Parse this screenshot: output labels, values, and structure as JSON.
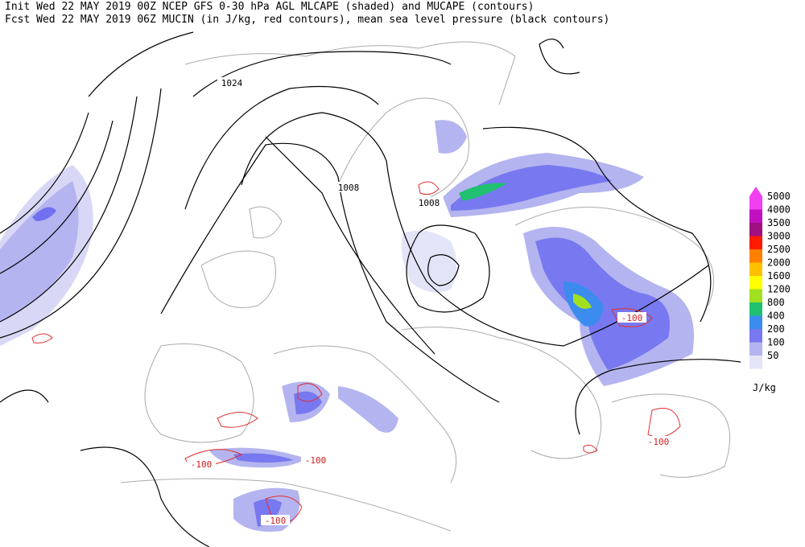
{
  "header": {
    "line1": "Init  Wed 22 MAY 2019 00Z  NCEP GFS 0-30 hPa AGL MLCAPE (shaded) and MUCAPE (contours)",
    "line2": "Fcst Wed 22 MAY 2019 06Z  MUCIN (in J/kg, red contours), mean sea level pressure (black contours)"
  },
  "legend": {
    "unit": "J/kg",
    "levels": [
      {
        "value": 5000,
        "color": "#f040f0"
      },
      {
        "value": 4000,
        "color": "#c010c0"
      },
      {
        "value": 3500,
        "color": "#a01080"
      },
      {
        "value": 3000,
        "color": "#ff1a00"
      },
      {
        "value": 2500,
        "color": "#ff8000"
      },
      {
        "value": 2000,
        "color": "#ffc000"
      },
      {
        "value": 1600,
        "color": "#ffff00"
      },
      {
        "value": 1200,
        "color": "#a0e020"
      },
      {
        "value": 800,
        "color": "#20c070"
      },
      {
        "value": 400,
        "color": "#3c8cf0"
      },
      {
        "value": 200,
        "color": "#7878f0"
      },
      {
        "value": 100,
        "color": "#b4b4f0"
      },
      {
        "value": 50,
        "color": "#e4e4f8"
      }
    ]
  },
  "contour_labels": [
    "1024",
    "1008",
    "1008",
    "-100",
    "-100",
    "-100",
    "-100",
    "-100"
  ]
}
